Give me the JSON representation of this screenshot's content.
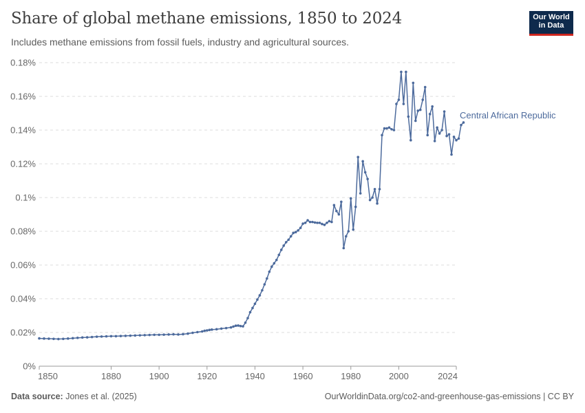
{
  "header": {
    "title": "Share of global methane emissions, 1850 to 2024",
    "subtitle": "Includes methane emissions from fossil fuels, industry and agricultural sources."
  },
  "logo": {
    "line1": "Our World",
    "line2": "in Data"
  },
  "footer": {
    "source_label": "Data source:",
    "source_text": "Jones et al. (2025)",
    "right_text": "OurWorldinData.org/co2-and-greenhouse-gas-emissions | CC BY"
  },
  "colors": {
    "series": "#4c6a9c",
    "grid": "#dddddd",
    "axis": "#999999"
  },
  "chart_data": {
    "type": "line",
    "title": "Share of global methane emissions, 1850 to 2024",
    "xlabel": "",
    "ylabel": "",
    "xlim": [
      1850,
      2024
    ],
    "ylim": [
      0,
      0.18
    ],
    "y_ticks": [
      0,
      0.02,
      0.04,
      0.06,
      0.08,
      0.1,
      0.12,
      0.14,
      0.16,
      0.18
    ],
    "y_tick_labels": [
      "0%",
      "0.02%",
      "0.04%",
      "0.06%",
      "0.08%",
      "0.1%",
      "0.12%",
      "0.14%",
      "0.16%",
      "0.18%"
    ],
    "x_ticks": [
      1850,
      1880,
      1900,
      1920,
      1940,
      1960,
      1980,
      2000,
      2024
    ],
    "x_tick_labels": [
      "1850",
      "1880",
      "1900",
      "1920",
      "1940",
      "1960",
      "1980",
      "2000",
      "2024"
    ],
    "grid": "horizontal dashed",
    "series": [
      {
        "name": "Central African Republic",
        "points": [
          [
            1850,
            0.0165
          ],
          [
            1852,
            0.0164
          ],
          [
            1854,
            0.0163
          ],
          [
            1856,
            0.0162
          ],
          [
            1858,
            0.0161
          ],
          [
            1860,
            0.0162
          ],
          [
            1862,
            0.0164
          ],
          [
            1864,
            0.0166
          ],
          [
            1866,
            0.0168
          ],
          [
            1868,
            0.017
          ],
          [
            1870,
            0.0171
          ],
          [
            1872,
            0.0173
          ],
          [
            1874,
            0.0175
          ],
          [
            1876,
            0.0176
          ],
          [
            1878,
            0.0177
          ],
          [
            1880,
            0.0178
          ],
          [
            1882,
            0.0178
          ],
          [
            1884,
            0.0179
          ],
          [
            1886,
            0.018
          ],
          [
            1888,
            0.0181
          ],
          [
            1890,
            0.0182
          ],
          [
            1892,
            0.0183
          ],
          [
            1894,
            0.0184
          ],
          [
            1896,
            0.0185
          ],
          [
            1898,
            0.0186
          ],
          [
            1900,
            0.0186
          ],
          [
            1902,
            0.0187
          ],
          [
            1904,
            0.0188
          ],
          [
            1906,
            0.0189
          ],
          [
            1908,
            0.0188
          ],
          [
            1910,
            0.019
          ],
          [
            1912,
            0.0193
          ],
          [
            1914,
            0.0198
          ],
          [
            1916,
            0.0202
          ],
          [
            1918,
            0.0206
          ],
          [
            1919,
            0.021
          ],
          [
            1920,
            0.0212
          ],
          [
            1921,
            0.0215
          ],
          [
            1922,
            0.0217
          ],
          [
            1924,
            0.0219
          ],
          [
            1926,
            0.0223
          ],
          [
            1928,
            0.0226
          ],
          [
            1930,
            0.023
          ],
          [
            1931,
            0.0235
          ],
          [
            1932,
            0.024
          ],
          [
            1933,
            0.0241
          ],
          [
            1934,
            0.0238
          ],
          [
            1935,
            0.0236
          ],
          [
            1936,
            0.0258
          ],
          [
            1937,
            0.0285
          ],
          [
            1938,
            0.032
          ],
          [
            1939,
            0.0345
          ],
          [
            1940,
            0.037
          ],
          [
            1941,
            0.0395
          ],
          [
            1942,
            0.042
          ],
          [
            1943,
            0.045
          ],
          [
            1944,
            0.0485
          ],
          [
            1945,
            0.052
          ],
          [
            1946,
            0.056
          ],
          [
            1947,
            0.059
          ],
          [
            1948,
            0.061
          ],
          [
            1949,
            0.063
          ],
          [
            1950,
            0.066
          ],
          [
            1951,
            0.069
          ],
          [
            1952,
            0.0715
          ],
          [
            1953,
            0.0735
          ],
          [
            1954,
            0.075
          ],
          [
            1955,
            0.077
          ],
          [
            1956,
            0.079
          ],
          [
            1957,
            0.0795
          ],
          [
            1958,
            0.0805
          ],
          [
            1959,
            0.082
          ],
          [
            1960,
            0.0845
          ],
          [
            1961,
            0.085
          ],
          [
            1962,
            0.0865
          ],
          [
            1963,
            0.0855
          ],
          [
            1964,
            0.0855
          ],
          [
            1965,
            0.0852
          ],
          [
            1966,
            0.085
          ],
          [
            1967,
            0.085
          ],
          [
            1968,
            0.0843
          ],
          [
            1969,
            0.0838
          ],
          [
            1970,
            0.085
          ],
          [
            1971,
            0.086
          ],
          [
            1972,
            0.0855
          ],
          [
            1973,
            0.0955
          ],
          [
            1974,
            0.092
          ],
          [
            1975,
            0.09
          ],
          [
            1976,
            0.0975
          ],
          [
            1977,
            0.07
          ],
          [
            1978,
            0.077
          ],
          [
            1979,
            0.08
          ],
          [
            1980,
            0.0995
          ],
          [
            1981,
            0.081
          ],
          [
            1982,
            0.0945
          ],
          [
            1983,
            0.124
          ],
          [
            1984,
            0.1025
          ],
          [
            1985,
            0.1215
          ],
          [
            1986,
            0.115
          ],
          [
            1987,
            0.111
          ],
          [
            1988,
            0.0985
          ],
          [
            1989,
            0.1
          ],
          [
            1990,
            0.105
          ],
          [
            1991,
            0.0965
          ],
          [
            1992,
            0.105
          ],
          [
            1993,
            0.137
          ],
          [
            1994,
            0.141
          ],
          [
            1995,
            0.141
          ],
          [
            1996,
            0.1415
          ],
          [
            1997,
            0.1405
          ],
          [
            1998,
            0.14
          ],
          [
            1999,
            0.1555
          ],
          [
            2000,
            0.158
          ],
          [
            2001,
            0.1745
          ],
          [
            2002,
            0.1555
          ],
          [
            2003,
            0.1745
          ],
          [
            2004,
            0.148
          ],
          [
            2005,
            0.134
          ],
          [
            2006,
            0.168
          ],
          [
            2007,
            0.1455
          ],
          [
            2008,
            0.1515
          ],
          [
            2009,
            0.152
          ],
          [
            2010,
            0.158
          ],
          [
            2011,
            0.1655
          ],
          [
            2012,
            0.137
          ],
          [
            2013,
            0.1495
          ],
          [
            2014,
            0.154
          ],
          [
            2015,
            0.1335
          ],
          [
            2016,
            0.1415
          ],
          [
            2017,
            0.138
          ],
          [
            2018,
            0.14
          ],
          [
            2019,
            0.151
          ],
          [
            2020,
            0.1365
          ],
          [
            2021,
            0.1375
          ],
          [
            2022,
            0.1255
          ],
          [
            2023,
            0.136
          ],
          [
            2024,
            0.134
          ],
          [
            2025,
            0.135
          ],
          [
            2026,
            0.143
          ],
          [
            2027,
            0.1445
          ]
        ]
      }
    ]
  }
}
